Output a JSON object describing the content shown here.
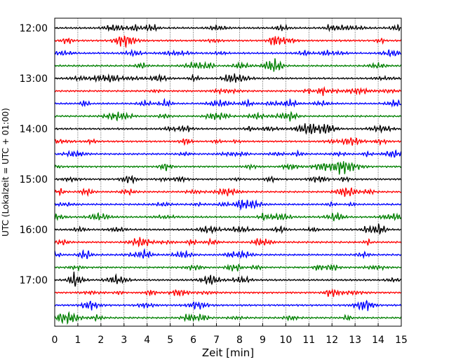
{
  "chart_data": {
    "type": "line",
    "xlabel": "Zeit  [min]",
    "ylabel": "UTC (Lokalzeit = UTC + 01:00)",
    "xlim": [
      0,
      15
    ],
    "x_ticks": [
      "0",
      "1",
      "2",
      "3",
      "4",
      "5",
      "6",
      "7",
      "8",
      "9",
      "10",
      "11",
      "12",
      "13",
      "14",
      "15"
    ],
    "y_ticks": [
      "12:00",
      "13:00",
      "14:00",
      "15:00",
      "16:00",
      "17:00"
    ],
    "grid": "vertical-dotted",
    "series_colors": [
      "#000000",
      "#ff0000",
      "#0000ff",
      "#008000"
    ],
    "traces": [
      {
        "time": "12:00"
      },
      {
        "time": "12:15"
      },
      {
        "time": "12:30"
      },
      {
        "time": "12:45"
      },
      {
        "time": "13:00"
      },
      {
        "time": "13:15"
      },
      {
        "time": "13:30"
      },
      {
        "time": "13:45"
      },
      {
        "time": "14:00"
      },
      {
        "time": "14:15"
      },
      {
        "time": "14:30"
      },
      {
        "time": "14:45"
      },
      {
        "time": "15:00"
      },
      {
        "time": "15:15"
      },
      {
        "time": "15:30"
      },
      {
        "time": "15:45"
      },
      {
        "time": "16:00"
      },
      {
        "time": "16:15"
      },
      {
        "time": "16:30"
      },
      {
        "time": "16:45"
      },
      {
        "time": "17:00"
      },
      {
        "time": "17:15"
      },
      {
        "time": "17:30"
      },
      {
        "time": "17:45"
      }
    ]
  }
}
